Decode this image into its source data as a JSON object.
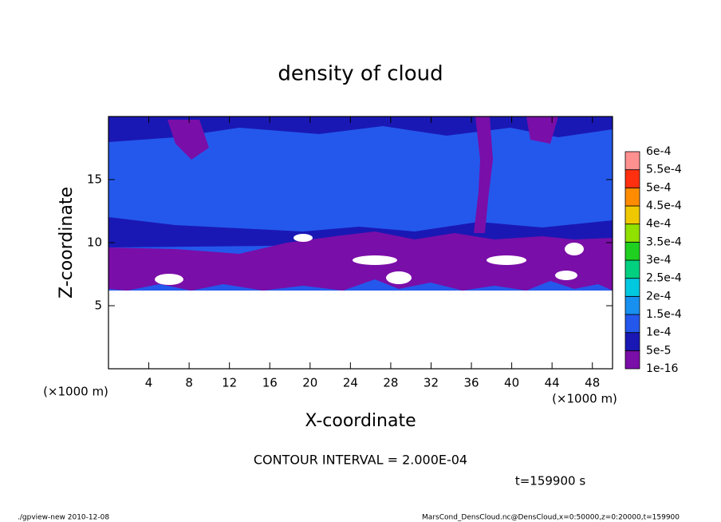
{
  "chart_data": {
    "type": "contour",
    "title": "density of cloud",
    "x_label": "X-coordinate",
    "y_label": "Z-coordinate",
    "x_unit": "(×1000 m)",
    "y_unit": "(×1000 m)",
    "xlim": [
      0,
      50
    ],
    "ylim": [
      0,
      20
    ],
    "xticks": [
      4,
      8,
      12,
      16,
      20,
      24,
      28,
      32,
      36,
      40,
      44,
      48
    ],
    "yticks": [
      5,
      10,
      15
    ],
    "colorbar": {
      "levels": [
        {
          "value": 1e-16,
          "label": "1e-16"
        },
        {
          "value": 5e-05,
          "label": "5e-5"
        },
        {
          "value": 0.0001,
          "label": "1e-4"
        },
        {
          "value": 0.00015,
          "label": "1.5e-4"
        },
        {
          "value": 0.0002,
          "label": "2e-4"
        },
        {
          "value": 0.00025,
          "label": "2.5e-4"
        },
        {
          "value": 0.0003,
          "label": "3e-4"
        },
        {
          "value": 0.00035,
          "label": "3.5e-4"
        },
        {
          "value": 0.0004,
          "label": "4e-4"
        },
        {
          "value": 0.00045,
          "label": "4.5e-4"
        },
        {
          "value": 0.0005,
          "label": "5e-4"
        },
        {
          "value": 0.00055,
          "label": "5.5e-4"
        },
        {
          "value": 0.0006,
          "label": "6e-4"
        }
      ],
      "colors": [
        "#7a0ea8",
        "#1a18b4",
        "#2458ec",
        "#1890f0",
        "#00c8e0",
        "#00d080",
        "#20d020",
        "#90e000",
        "#f0c800",
        "#ff8c00",
        "#ff3010",
        "#ff9090"
      ]
    },
    "contour_interval": "CONTOUR INTERVAL = 2.000E-04",
    "time_label": "t=159900 s",
    "footer_left": "./gpview-new  2010-12-08",
    "footer_right": "MarsCond_DensCloud.nc@DensCloud,x=0:50000,z=0:20000,t=159900"
  }
}
